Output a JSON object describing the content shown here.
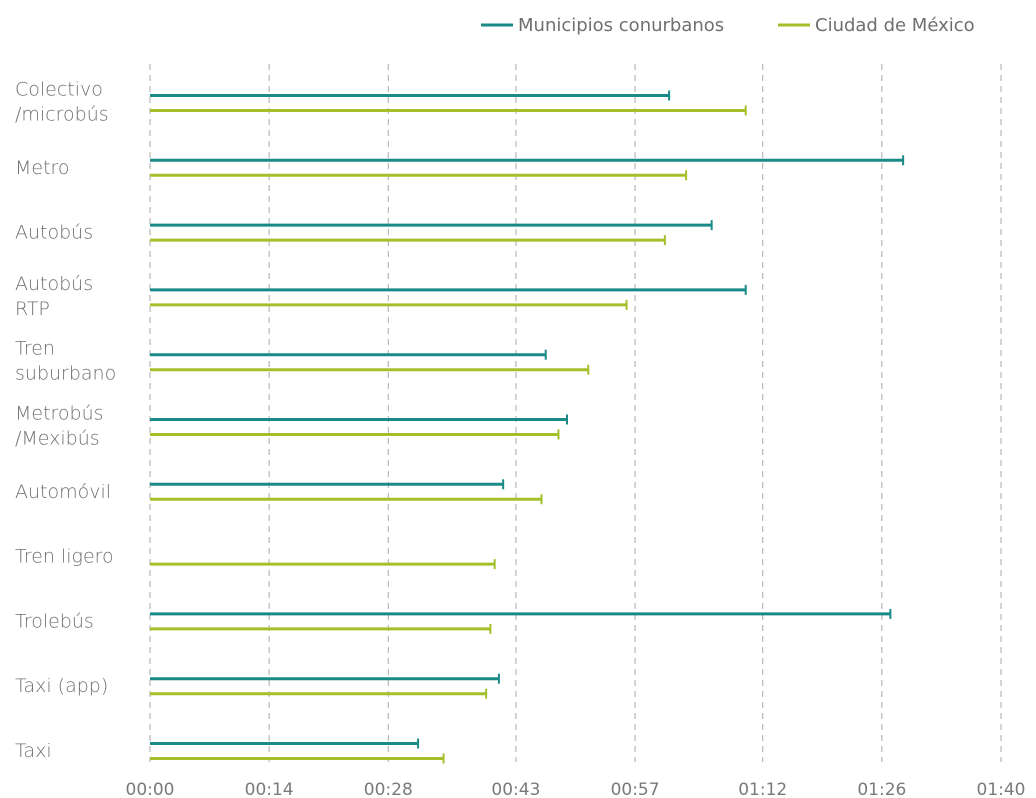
{
  "chart_data": {
    "type": "bar",
    "orientation": "horizontal",
    "style": "line-with-end-cap",
    "title": "",
    "xlabel": "",
    "ylabel": "",
    "x_unit": "minutes",
    "xlim": [
      0,
      100
    ],
    "x_ticks": [
      0,
      14,
      28,
      43,
      57,
      72,
      86,
      100
    ],
    "x_tick_labels": [
      "00:00",
      "00:14",
      "00:28",
      "00:43",
      "00:57",
      "01:12",
      "01:26",
      "01:40"
    ],
    "grid": "vertical-dashed",
    "legend_position": "top-right",
    "categories": [
      [
        "Colectivo",
        "/microbús"
      ],
      [
        "Metro"
      ],
      [
        "Autobús"
      ],
      [
        "Autobús",
        "RTP"
      ],
      [
        "Tren",
        "suburbano"
      ],
      [
        "Metrobús",
        "/Mexibús"
      ],
      [
        "Automóvil"
      ],
      [
        "Tren ligero"
      ],
      [
        "Trolebús"
      ],
      [
        "Taxi (app)"
      ],
      [
        "Taxi"
      ]
    ],
    "series": [
      {
        "name": "Municipios conurbanos",
        "color": "#1a8a86",
        "values": [
          61,
          88.5,
          66,
          70,
          46.5,
          49,
          41.5,
          null,
          87,
          41,
          31.5
        ]
      },
      {
        "name": "Ciudad de México",
        "color": "#a3c02a",
        "values": [
          70,
          63,
          60.5,
          56,
          51.5,
          48,
          46,
          40.5,
          40,
          39.5,
          34.5
        ]
      }
    ]
  }
}
